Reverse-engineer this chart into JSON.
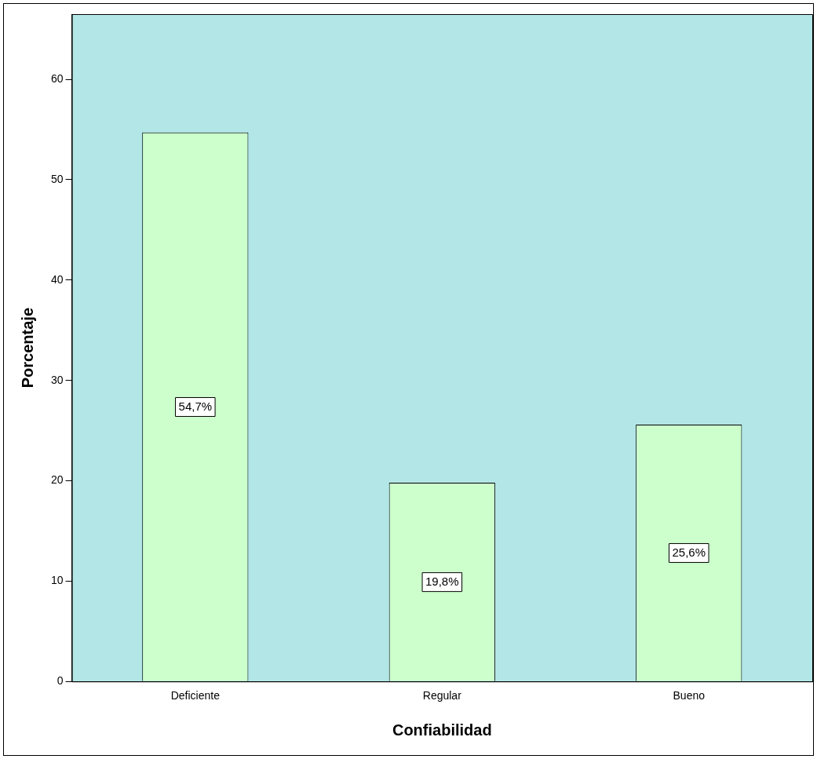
{
  "chart_data": {
    "type": "bar",
    "xlabel": "Confiabilidad",
    "ylabel": "Porcentaje",
    "categories": [
      "Deficiente",
      "Regular",
      "Bueno"
    ],
    "values": [
      54.7,
      19.8,
      25.6
    ],
    "value_labels": [
      "54,7%",
      "19,8%",
      "25,6%"
    ],
    "color": "#ccffcc",
    "ylim": [
      0,
      66.5
    ],
    "yticks": [
      0,
      10,
      20,
      30,
      40,
      50,
      60
    ],
    "grid": false,
    "legend": false
  }
}
